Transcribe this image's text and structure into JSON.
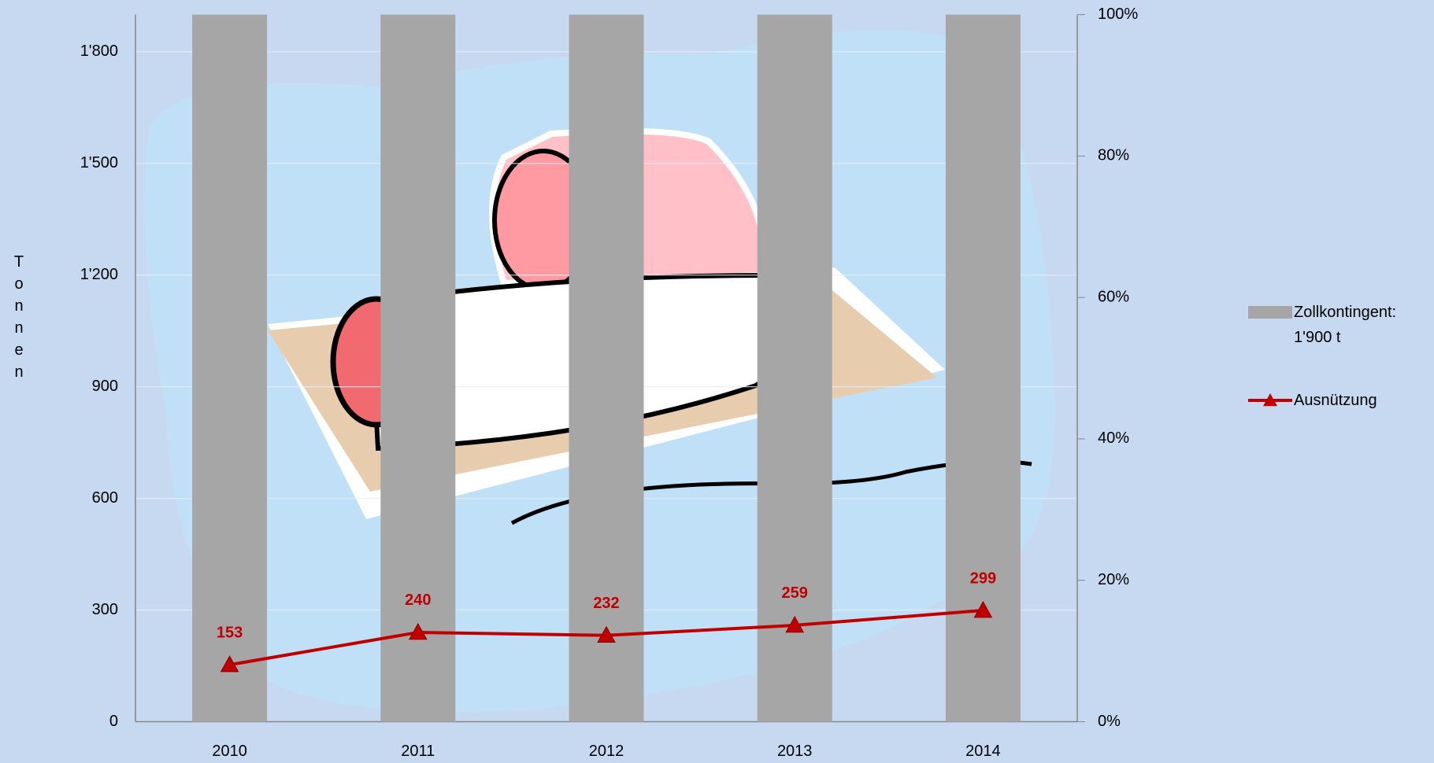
{
  "chart_data": {
    "type": "bar",
    "ylabel": "Tonnen",
    "categories": [
      "2010",
      "2011",
      "2012",
      "2013",
      "2014"
    ],
    "series": [
      {
        "name": "Zollkontingent: 1'900 t",
        "color": "#a6a6a6",
        "type": "bar",
        "values": [
          1900,
          1900,
          1900,
          1900,
          1900
        ]
      },
      {
        "name": "Ausnützung",
        "color": "#c00000",
        "type": "line",
        "marker": "triangle",
        "values": [
          153,
          240,
          232,
          259,
          299
        ]
      }
    ],
    "ylim": [
      0,
      1900
    ],
    "yticks": [
      0,
      300,
      600,
      900,
      {
        "value": 1200,
        "label": "1'200"
      },
      {
        "value": 1500,
        "label": "1'500"
      },
      {
        "value": 1800,
        "label": "1'800"
      }
    ],
    "y2lim": [
      0,
      100
    ],
    "y2ticks": [
      {
        "value": 0,
        "label": "0%"
      },
      {
        "value": 20,
        "label": "20%"
      },
      {
        "value": 40,
        "label": "40%"
      },
      {
        "value": 60,
        "label": "60%"
      },
      {
        "value": 80,
        "label": "80%"
      },
      {
        "value": 100,
        "label": "100%"
      }
    ],
    "grid": true,
    "legend": "right"
  }
}
